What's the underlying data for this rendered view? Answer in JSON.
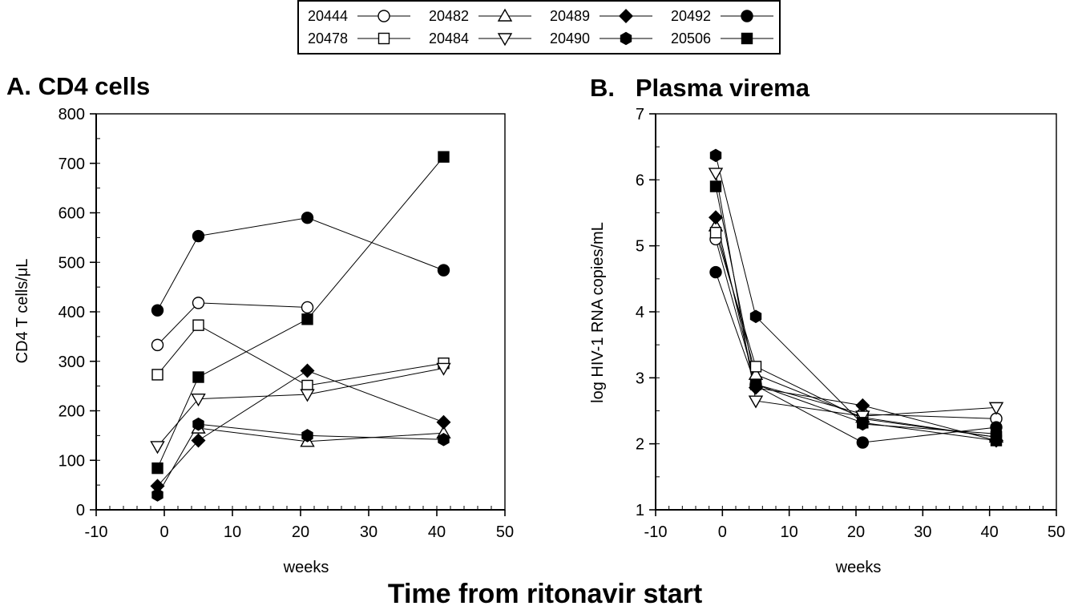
{
  "figure": {
    "supxlabel": "Time from ritonavir start",
    "legend": {
      "placement": "top-center",
      "entries": [
        {
          "name": "20444",
          "marker": "circle-open"
        },
        {
          "name": "20482",
          "marker": "triangle-up-open"
        },
        {
          "name": "20489",
          "marker": "diamond-filled"
        },
        {
          "name": "20492",
          "marker": "circle-filled"
        },
        {
          "name": "20478",
          "marker": "square-open"
        },
        {
          "name": "20484",
          "marker": "triangle-down-open"
        },
        {
          "name": "20490",
          "marker": "hexagon-filled"
        },
        {
          "name": "20506",
          "marker": "square-filled"
        }
      ]
    }
  },
  "chart_data": [
    {
      "type": "line",
      "title": "A.  CD4 cells",
      "xlabel": "weeks",
      "ylabel": "CD4 T cells/μL",
      "xlim": [
        -10,
        50
      ],
      "ylim": [
        0,
        800
      ],
      "xticks": [
        -10,
        0,
        10,
        20,
        30,
        40,
        50
      ],
      "yticks": [
        0,
        100,
        200,
        300,
        400,
        500,
        600,
        700,
        800
      ],
      "grid": false,
      "series": [
        {
          "name": "20444",
          "x": [
            -1,
            5,
            21,
            41
          ],
          "y": [
            333,
            418,
            409,
            null
          ]
        },
        {
          "name": "20482",
          "x": [
            -1,
            5,
            21,
            41
          ],
          "y": [
            null,
            165,
            138,
            155
          ]
        },
        {
          "name": "20489",
          "x": [
            -1,
            5,
            21,
            41
          ],
          "y": [
            48,
            140,
            281,
            177
          ]
        },
        {
          "name": "20492",
          "x": [
            -1,
            5,
            21,
            41
          ],
          "y": [
            403,
            553,
            590,
            484
          ]
        },
        {
          "name": "20478",
          "x": [
            -1,
            5,
            21,
            41
          ],
          "y": [
            273,
            373,
            251,
            296
          ]
        },
        {
          "name": "20484",
          "x": [
            -1,
            5,
            21,
            41
          ],
          "y": [
            128,
            224,
            233,
            286
          ]
        },
        {
          "name": "20490",
          "x": [
            -1,
            5,
            21,
            41
          ],
          "y": [
            30,
            173,
            150,
            142
          ]
        },
        {
          "name": "20506",
          "x": [
            -1,
            5,
            21,
            41
          ],
          "y": [
            84,
            268,
            385,
            713
          ]
        }
      ]
    },
    {
      "type": "line",
      "title": "B.   Plasma virema",
      "xlabel": "weeks",
      "ylabel": "log HIV-1 RNA copies/mL",
      "xlim": [
        -10,
        50
      ],
      "ylim": [
        1,
        7
      ],
      "xticks": [
        -10,
        0,
        10,
        20,
        30,
        40,
        50
      ],
      "yticks": [
        1,
        2,
        3,
        4,
        5,
        6,
        7
      ],
      "grid": false,
      "series": [
        {
          "name": "20444",
          "x": [
            -1,
            5,
            21,
            41
          ],
          "y": [
            5.1,
            2.9,
            2.45,
            2.38
          ]
        },
        {
          "name": "20482",
          "x": [
            -1,
            5,
            21,
            41
          ],
          "y": [
            5.3,
            3.05,
            2.4,
            2.1
          ]
        },
        {
          "name": "20489",
          "x": [
            -1,
            5,
            21,
            41
          ],
          "y": [
            5.43,
            2.85,
            2.58,
            2.05
          ]
        },
        {
          "name": "20492",
          "x": [
            -1,
            5,
            21,
            41
          ],
          "y": [
            4.6,
            2.88,
            2.02,
            2.25
          ]
        },
        {
          "name": "20478",
          "x": [
            -1,
            5,
            21,
            41
          ],
          "y": [
            5.2,
            3.17,
            2.38,
            2.1
          ]
        },
        {
          "name": "20484",
          "x": [
            -1,
            5,
            21,
            41
          ],
          "y": [
            6.1,
            2.65,
            2.42,
            2.55
          ]
        },
        {
          "name": "20490",
          "x": [
            -1,
            5,
            21,
            41
          ],
          "y": [
            6.37,
            3.93,
            2.3,
            2.15
          ]
        },
        {
          "name": "20506",
          "x": [
            -1,
            5,
            21,
            41
          ],
          "y": [
            5.9,
            2.9,
            2.32,
            2.05
          ]
        }
      ]
    }
  ]
}
